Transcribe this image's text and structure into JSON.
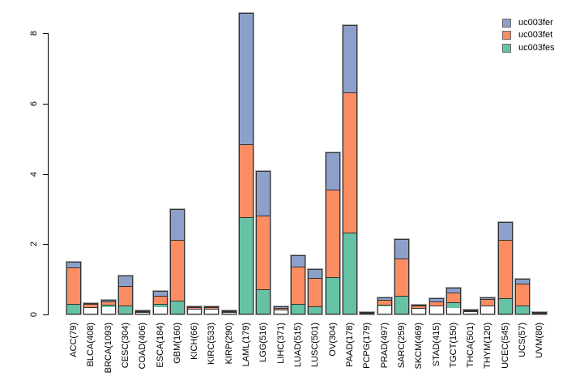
{
  "chart_data": {
    "type": "bar",
    "stacked": true,
    "title": "",
    "xlabel": "",
    "ylabel": "",
    "ylim": [
      0,
      8.7
    ],
    "yticks": [
      0,
      2,
      4,
      6,
      8
    ],
    "grid": false,
    "legend_position": "top-right",
    "axis_color": "#000000",
    "bar_border_color": "#333333",
    "categories": [
      "ACC(79)",
      "BLCA(408)",
      "BRCA(1093)",
      "CESC(304)",
      "COAD(406)",
      "ESCA(184)",
      "GBM(160)",
      "KICH(66)",
      "KIRC(533)",
      "KIRP(290)",
      "LAML(179)",
      "LGG(516)",
      "LIHC(371)",
      "LUAD(515)",
      "LUSC(501)",
      "OV(304)",
      "PAAD(178)",
      "PCPG(179)",
      "PRAD(497)",
      "SARC(259)",
      "SKCM(469)",
      "STAD(415)",
      "TGCT(150)",
      "THCA(501)",
      "THYM(120)",
      "UCEC(545)",
      "UCS(57)",
      "UVM(80)"
    ],
    "series": [
      {
        "name": "uc003fes",
        "color": "#66C2A5",
        "values": [
          0.26,
          0.03,
          0.09,
          0.23,
          0.01,
          0.09,
          0.35,
          0.02,
          0.02,
          0.01,
          2.76,
          0.68,
          0.02,
          0.26,
          0.21,
          1.04,
          2.31,
          0.01,
          0.05,
          0.51,
          0.03,
          0.05,
          0.22,
          0.02,
          0.03,
          0.42,
          0.23,
          0.01
        ]
      },
      {
        "name": "uc003fet",
        "color": "#FC8D62",
        "values": [
          1.1,
          0.26,
          0.26,
          0.58,
          0.09,
          0.38,
          1.77,
          0.2,
          0.14,
          0.09,
          2.07,
          2.14,
          0.18,
          1.1,
          0.84,
          2.52,
          4.02,
          0.04,
          0.33,
          1.08,
          0.22,
          0.2,
          0.36,
          0.1,
          0.41,
          1.7,
          0.66,
          0.05
        ]
      },
      {
        "name": "uc003fer",
        "color": "#8DA0CB",
        "values": [
          0.14,
          0.04,
          0.07,
          0.3,
          0.02,
          0.19,
          0.87,
          0.02,
          0.07,
          0.02,
          3.76,
          1.27,
          0.02,
          0.32,
          0.25,
          1.06,
          1.9,
          0.01,
          0.1,
          0.55,
          0.03,
          0.21,
          0.18,
          0.02,
          0.05,
          0.52,
          0.12,
          0.01
        ]
      }
    ],
    "legend": [
      {
        "label": "uc003fer",
        "color": "#8DA0CB"
      },
      {
        "label": "uc003fet",
        "color": "#FC8D62"
      },
      {
        "label": "uc003fes",
        "color": "#66C2A5"
      }
    ]
  }
}
